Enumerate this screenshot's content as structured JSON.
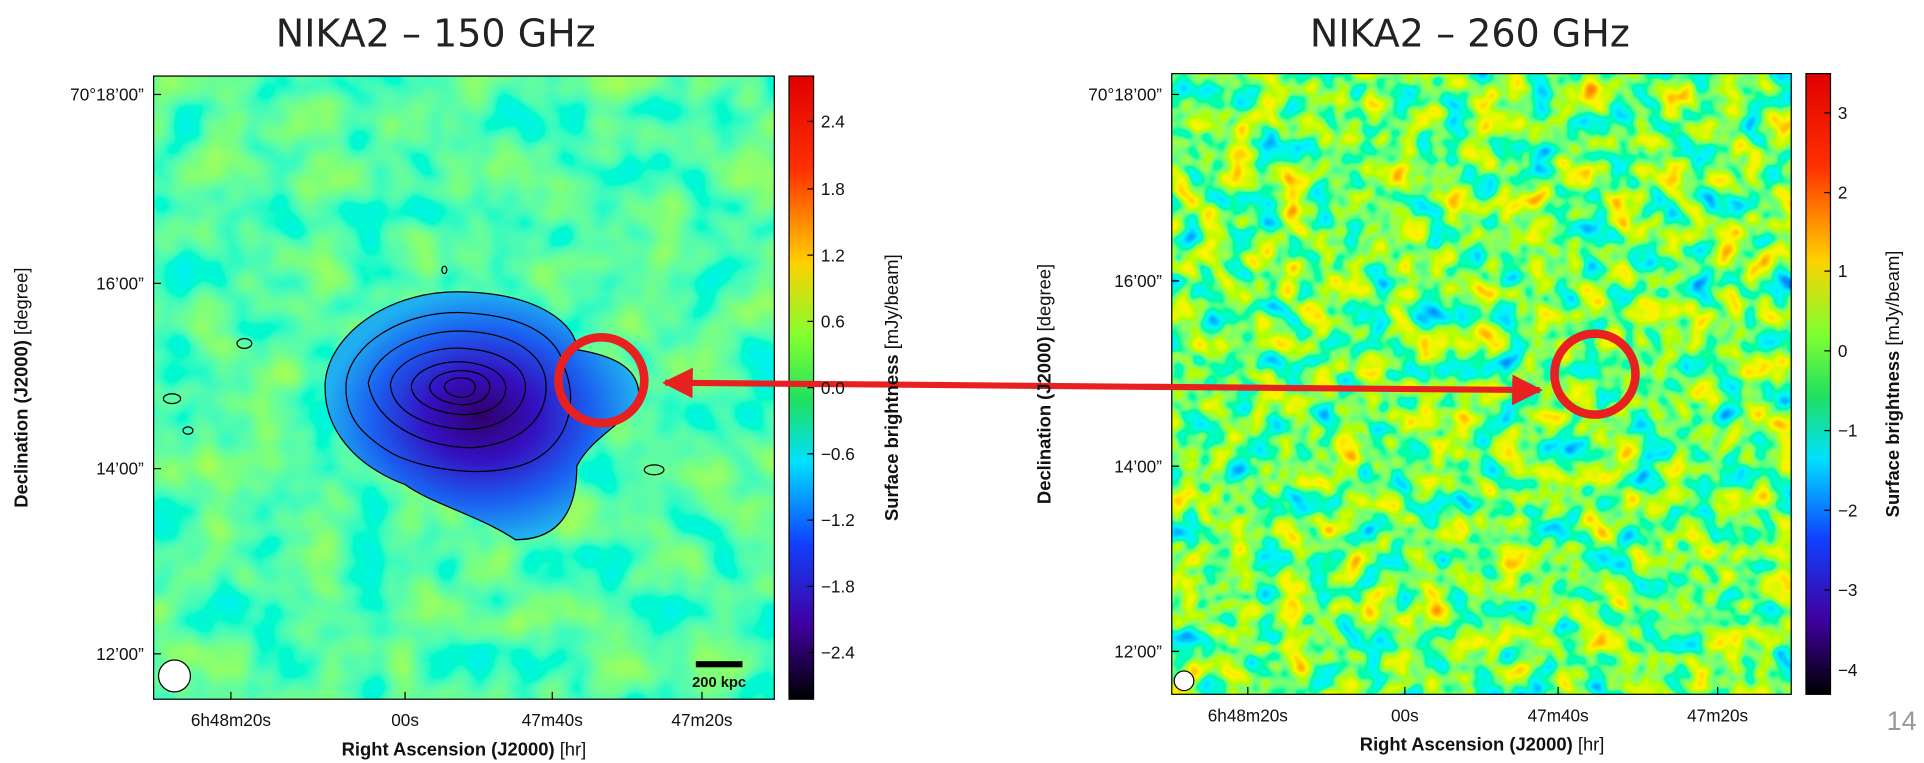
{
  "slide": {
    "panels": [
      {
        "title": "NIKA2 – 150 GHz",
        "y_ticks": [
          "70°18’00”",
          "16’00”",
          "14’00”",
          "12’00”"
        ],
        "x_ticks": [
          "6h48m20s",
          "00s",
          "47m40s",
          "47m20s"
        ],
        "x_label": {
          "name": "Right Ascension (J2000)",
          "unit": "[hr]"
        },
        "y_label": {
          "name": "Declination (J2000)",
          "unit": "[degree]"
        },
        "colorbar": {
          "ticks": [
            "2.4",
            "1.8",
            "1.2",
            "0.6",
            "0.0",
            "−0.6",
            "−1.2",
            "−1.8",
            "−2.4"
          ],
          "label": {
            "name": "Surface brightness",
            "unit": "[mJy/beam]"
          }
        },
        "scale_bar": "200 kpc"
      },
      {
        "title": "NIKA2 – 260 GHz",
        "y_ticks": [
          "70°18’00”",
          "16’00”",
          "14’00”",
          "12’00”"
        ],
        "x_ticks": [
          "6h48m20s",
          "00s",
          "47m40s",
          "47m20s"
        ],
        "x_label": {
          "name": "Right Ascension (J2000)",
          "unit": "[hr]"
        },
        "y_label": {
          "name": "Declination (J2000)",
          "unit": "[degree]"
        },
        "colorbar": {
          "ticks": [
            "3",
            "2",
            "1",
            "0",
            "−1",
            "−2",
            "−3",
            "−4"
          ],
          "label": {
            "name": "Surface brightness",
            "unit": "[mJy/beam]"
          }
        }
      }
    ],
    "page_number": "14"
  }
}
